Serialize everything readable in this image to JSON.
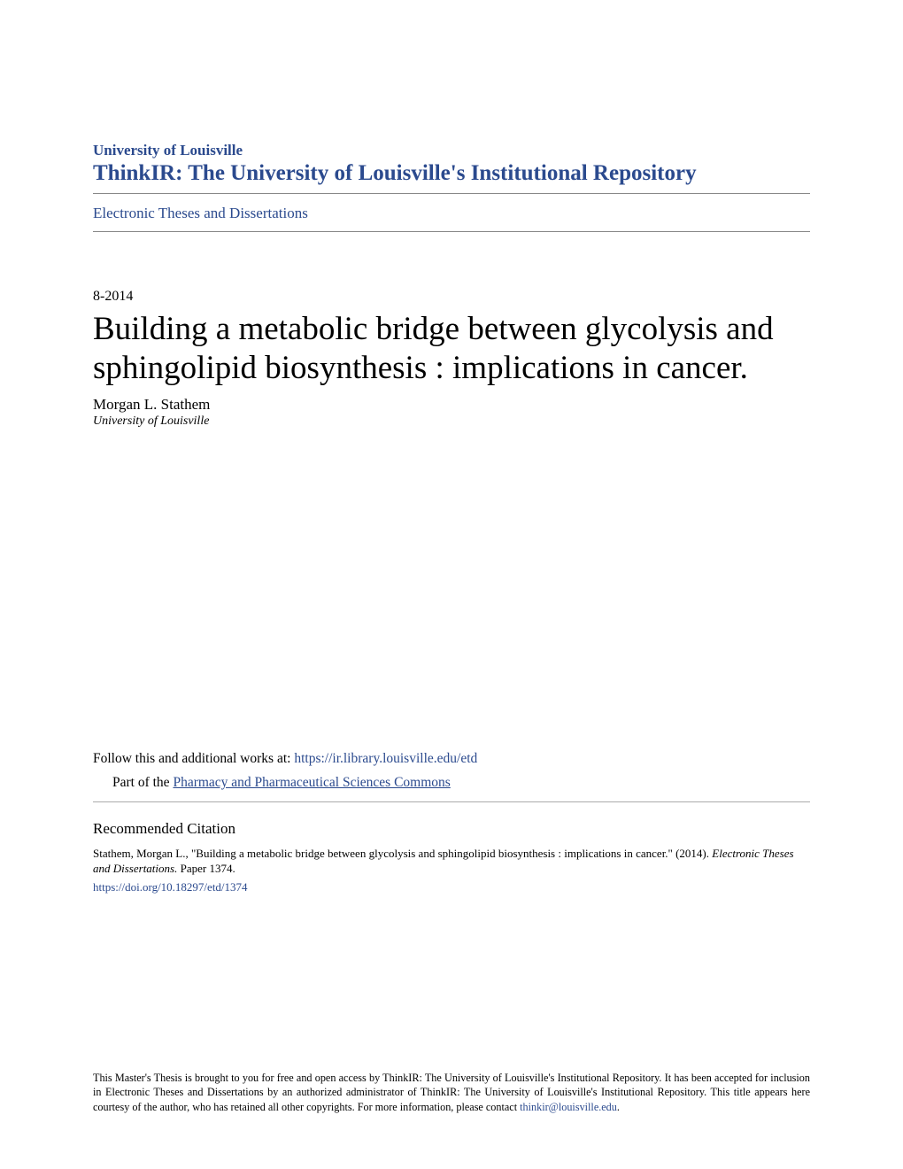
{
  "header": {
    "university": "University of Louisville",
    "repository": "ThinkIR: The University of Louisville's Institutional Repository",
    "breadcrumb": "Electronic Theses and Dissertations"
  },
  "meta": {
    "date": "8-2014"
  },
  "paper": {
    "title": "Building a metabolic bridge between glycolysis and sphingolipid biosynthesis : implications in cancer.",
    "author": "Morgan L. Stathem",
    "affiliation": "University of Louisville"
  },
  "follow": {
    "prefix": "Follow this and additional works at: ",
    "url_label": "https://ir.library.louisville.edu/etd",
    "part_prefix": "Part of the ",
    "commons_label": "Pharmacy and Pharmaceutical Sciences Commons"
  },
  "citation": {
    "heading": "Recommended Citation",
    "text_pre": "Stathem, Morgan L., \"Building a metabolic bridge between glycolysis and sphingolipid biosynthesis : implications in cancer.\" (2014). ",
    "text_italic": "Electronic Theses and Dissertations.",
    "text_post": " Paper 1374.",
    "doi": "https://doi.org/10.18297/etd/1374"
  },
  "footer": {
    "text_pre": "This Master's Thesis is brought to you for free and open access by ThinkIR: The University of Louisville's Institutional Repository. It has been accepted for inclusion in Electronic Theses and Dissertations by an authorized administrator of ThinkIR: The University of Louisville's Institutional Repository. This title appears here courtesy of the author, who has retained all other copyrights. For more information, please contact ",
    "email": "thinkir@louisville.edu",
    "text_post": "."
  },
  "colors": {
    "link": "#2b4a8e",
    "text": "#000000",
    "background": "#ffffff",
    "divider": "#888888"
  },
  "typography": {
    "university_fontsize": 17,
    "repository_fontsize": 25,
    "title_fontsize": 37,
    "body_fontsize": 15,
    "citation_fontsize": 13,
    "footer_fontsize": 12,
    "font_family": "Georgia, serif"
  }
}
